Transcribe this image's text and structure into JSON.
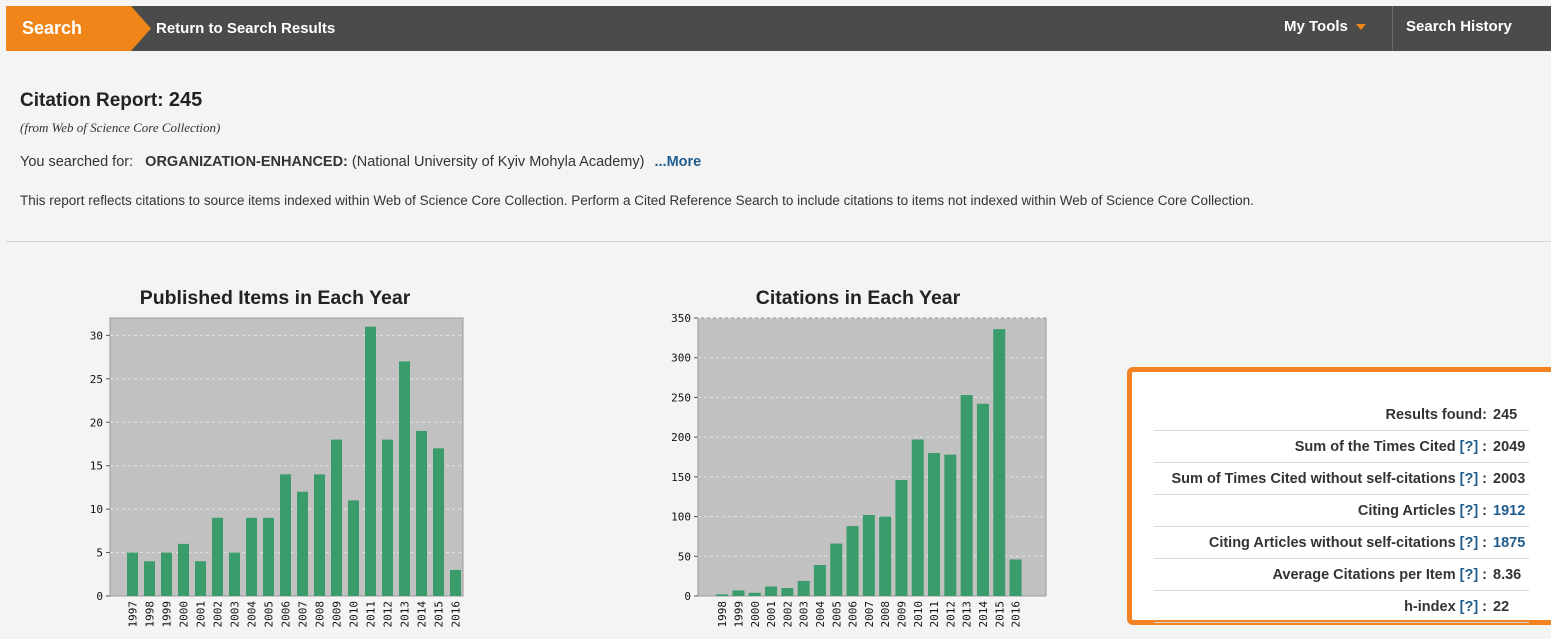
{
  "topbar": {
    "search_tab": "Search",
    "return_link": "Return to Search Results",
    "my_tools": "My Tools",
    "search_history": "Search History"
  },
  "report": {
    "title": "Citation Report:",
    "count": "245",
    "source_note": "(from Web of Science Core Collection)",
    "searched_prefix": "You searched for:",
    "searched_field": "ORGANIZATION-ENHANCED:",
    "searched_value": "(National University of Kyiv Mohyla Academy)",
    "more_link": "...More",
    "note": "This report reflects citations to source items indexed within Web of Science Core Collection. Perform a Cited Reference Search to include citations to items not indexed within Web of Science Core Collection."
  },
  "chart_data": [
    {
      "type": "bar",
      "title": "Published Items in Each Year",
      "xlabel": "",
      "ylabel": "",
      "categories": [
        "1997",
        "1998",
        "1999",
        "2000",
        "2001",
        "2002",
        "2003",
        "2004",
        "2005",
        "2006",
        "2007",
        "2008",
        "2009",
        "2010",
        "2011",
        "2012",
        "2013",
        "2014",
        "2015",
        "2016"
      ],
      "values": [
        5,
        4,
        5,
        6,
        4,
        9,
        5,
        9,
        9,
        14,
        12,
        14,
        18,
        11,
        31,
        18,
        27,
        19,
        17,
        3
      ],
      "ylim": [
        0,
        32
      ],
      "yticks": [
        0,
        5,
        10,
        15,
        20,
        25,
        30
      ],
      "grid": true,
      "bar_color": "#3a9b6b",
      "plot_bg": "#c1c1c1"
    },
    {
      "type": "bar",
      "title": "Citations in Each Year",
      "xlabel": "",
      "ylabel": "",
      "categories": [
        "1998",
        "1999",
        "2000",
        "2001",
        "2002",
        "2003",
        "2004",
        "2005",
        "2006",
        "2007",
        "2008",
        "2009",
        "2010",
        "2011",
        "2012",
        "2013",
        "2014",
        "2015",
        "2016"
      ],
      "values": [
        2,
        7,
        4,
        12,
        10,
        19,
        39,
        66,
        88,
        102,
        100,
        146,
        197,
        180,
        178,
        253,
        242,
        336,
        46
      ],
      "ylim": [
        0,
        350
      ],
      "yticks": [
        0,
        50,
        100,
        150,
        200,
        250,
        300,
        350
      ],
      "grid": true,
      "bar_color": "#3a9b6b",
      "plot_bg": "#c1c1c1"
    }
  ],
  "stats": [
    {
      "label": "Results found:",
      "help": "",
      "value": "245",
      "link": false
    },
    {
      "label": "Sum of the Times Cited",
      "help": "[?]",
      "sep": ":",
      "value": "2049",
      "link": false
    },
    {
      "label": "Sum of Times Cited without self-citations",
      "help": "[?]",
      "sep": ":",
      "value": "2003",
      "link": false
    },
    {
      "label": "Citing Articles",
      "help": "[?]",
      "sep": ":",
      "value": "1912",
      "link": true
    },
    {
      "label": "Citing Articles without self-citations",
      "help": "[?]",
      "sep": ":",
      "value": "1875",
      "link": true
    },
    {
      "label": "Average Citations per Item",
      "help": "[?]",
      "sep": ":",
      "value": "8.36",
      "link": false
    },
    {
      "label": "h-index",
      "help": "[?]",
      "sep": ":",
      "value": "22",
      "link": false
    }
  ]
}
